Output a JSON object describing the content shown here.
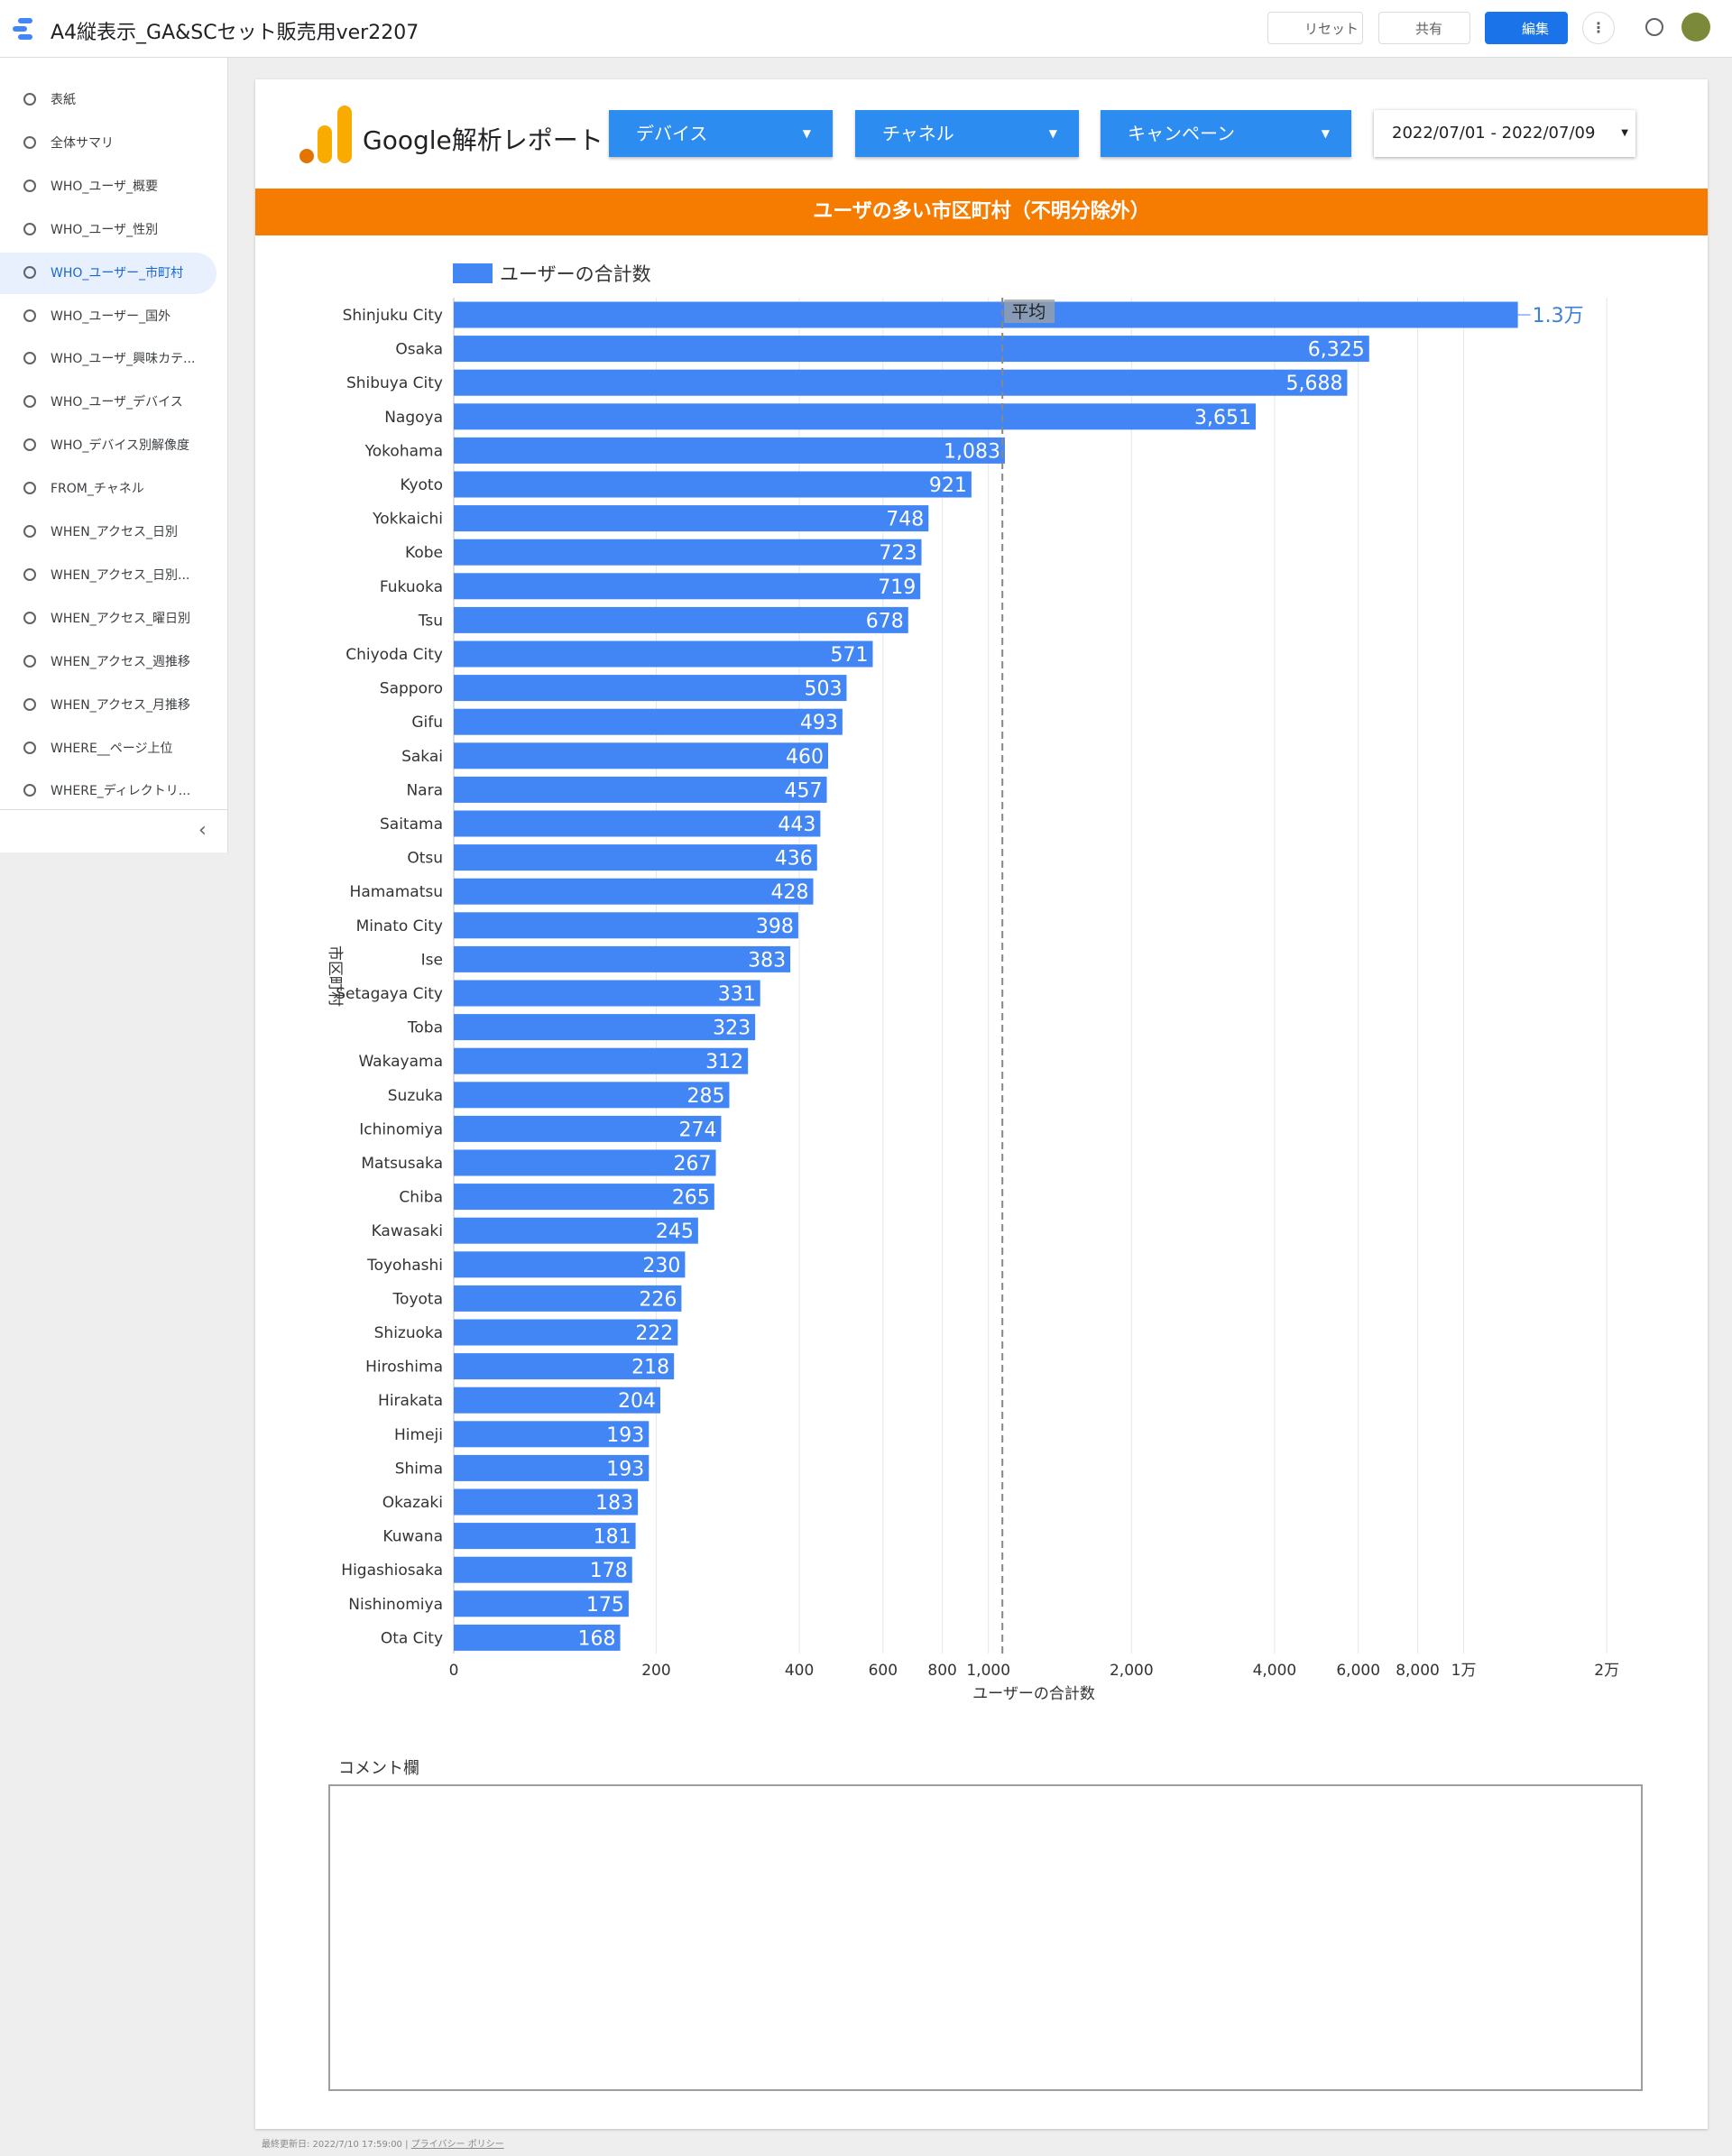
{
  "app_bar": {
    "title": "A4縦表示_GA&SCセット販売用ver2207",
    "reset": "リセット",
    "share": "共有",
    "edit": "編集"
  },
  "sidebar": {
    "items": [
      "表紙",
      "全体サマリ",
      "WHO_ユーザ_概要",
      "WHO_ユーザ_性別",
      "WHO_ユーザー_市町村",
      "WHO_ユーザー_国外",
      "WHO_ユーザ_興味カテ...",
      "WHO_ユーザ_デバイス",
      "WHO_デバイス別解像度",
      "FROM_チャネル",
      "WHEN_アクセス_日別",
      "WHEN_アクセス_日別...",
      "WHEN_アクセス_曜日別",
      "WHEN_アクセス_週推移",
      "WHEN_アクセス_月推移",
      "WHERE__ページ上位",
      "WHERE_ディレクトリ..."
    ],
    "selected": 4
  },
  "report": {
    "logo_text": "Google解析レポート",
    "filters": [
      "デバイス",
      "チャネル",
      "キャンペーン"
    ],
    "date_range": "2022/07/01 - 2022/07/09",
    "banner": "ユーザの多い市区町村（不明分除外）"
  },
  "chart_data": {
    "type": "hbar",
    "x_label": "ユーザーの合計数",
    "y_label": "市区町村",
    "scale": "log",
    "color": "#4285f4",
    "series_name": "ユーザーの合計数",
    "categories": [
      "Shinjuku City",
      "Osaka",
      "Shibuya City",
      "Nagoya",
      "Yokohama",
      "Kyoto",
      "Yokkaichi",
      "Kobe",
      "Fukuoka",
      "Tsu",
      "Chiyoda City",
      "Sapporo",
      "Gifu",
      "Sakai",
      "Nara",
      "Saitama",
      "Otsu",
      "Hamamatsu",
      "Minato City",
      "Ise",
      "Setagaya City",
      "Toba",
      "Wakayama",
      "Suzuka",
      "Ichinomiya",
      "Matsusaka",
      "Chiba",
      "Kawasaki",
      "Toyohashi",
      "Toyota",
      "Shizuoka",
      "Hiroshima",
      "Hirakata",
      "Himeji",
      "Shima",
      "Okazaki",
      "Kuwana",
      "Higashiosaka",
      "Nishinomiya",
      "Ota City"
    ],
    "values": [
      13000,
      6325,
      5688,
      3651,
      1083,
      921,
      748,
      723,
      719,
      678,
      571,
      503,
      493,
      460,
      457,
      443,
      436,
      428,
      398,
      383,
      331,
      323,
      312,
      285,
      274,
      267,
      265,
      245,
      230,
      226,
      222,
      218,
      204,
      193,
      193,
      183,
      181,
      178,
      175,
      168
    ],
    "value_labels": [
      "1.3万",
      "6,325",
      "5,688",
      "3,651",
      "1,083",
      "921",
      "748",
      "723",
      "719",
      "678",
      "571",
      "503",
      "493",
      "460",
      "457",
      "443",
      "436",
      "428",
      "398",
      "383",
      "331",
      "323",
      "312",
      "285",
      "274",
      "267",
      "265",
      "245",
      "230",
      "226",
      "222",
      "218",
      "204",
      "193",
      "193",
      "183",
      "181",
      "178",
      "175",
      "168"
    ],
    "xlim": [
      75,
      22000
    ],
    "xticks": [
      0,
      200,
      400,
      600,
      800,
      {
        "value": 1000,
        "label": "1,000"
      },
      {
        "value": 2000,
        "label": "2,000"
      },
      {
        "value": 4000,
        "label": "4,000"
      },
      {
        "value": 6000,
        "label": "6,000"
      },
      {
        "value": 8000,
        "label": "8,000"
      },
      {
        "value": 10000,
        "label": "1万"
      },
      {
        "value": 20000,
        "label": "2万"
      }
    ],
    "reference_line": {
      "label": "平均",
      "value": 1070
    }
  },
  "comment": {
    "label": "コメント欄"
  },
  "footer": {
    "updated": "最終更新日: 2022/7/10 17:59:00",
    "privacy": "プライバシー ポリシー"
  }
}
